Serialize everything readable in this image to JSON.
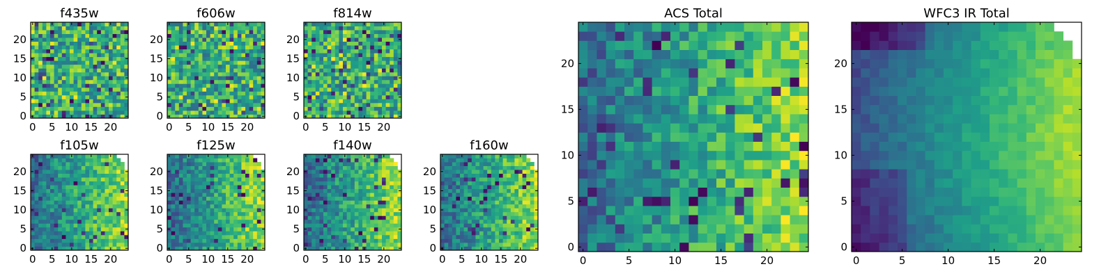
{
  "chart_data": [
    {
      "type": "heatmap",
      "title": "f435w",
      "colormap": "viridis",
      "grid_size": 25,
      "x_ticks": [
        "0",
        "5",
        "10",
        "15",
        "20"
      ],
      "y_ticks": [
        "0",
        "5",
        "10",
        "15",
        "20"
      ],
      "character": "noise",
      "masked_corner": false,
      "xlabel": "",
      "ylabel": ""
    },
    {
      "type": "heatmap",
      "title": "f606w",
      "colormap": "viridis",
      "grid_size": 25,
      "x_ticks": [
        "0",
        "5",
        "10",
        "15",
        "20"
      ],
      "y_ticks": [
        "0",
        "5",
        "10",
        "15",
        "20"
      ],
      "character": "noise",
      "masked_corner": false,
      "xlabel": "",
      "ylabel": ""
    },
    {
      "type": "heatmap",
      "title": "f814w",
      "colormap": "viridis",
      "grid_size": 25,
      "x_ticks": [
        "0",
        "5",
        "10",
        "15",
        "20"
      ],
      "y_ticks": [
        "0",
        "5",
        "10",
        "15",
        "20"
      ],
      "character": "noise",
      "masked_corner": false,
      "xlabel": "",
      "ylabel": ""
    },
    {
      "type": "heatmap",
      "title": "f105w",
      "colormap": "viridis",
      "grid_size": 25,
      "x_ticks": [
        "0",
        "5",
        "10",
        "15",
        "20"
      ],
      "y_ticks": [
        "0",
        "5",
        "10",
        "15",
        "20"
      ],
      "character": "gradient-noisy",
      "masked_corner": true,
      "xlabel": "",
      "ylabel": ""
    },
    {
      "type": "heatmap",
      "title": "f125w",
      "colormap": "viridis",
      "grid_size": 25,
      "x_ticks": [
        "0",
        "5",
        "10",
        "15",
        "20"
      ],
      "y_ticks": [
        "0",
        "5",
        "10",
        "15",
        "20"
      ],
      "character": "gradient-noisy",
      "masked_corner": true,
      "xlabel": "",
      "ylabel": ""
    },
    {
      "type": "heatmap",
      "title": "f140w",
      "colormap": "viridis",
      "grid_size": 25,
      "x_ticks": [
        "0",
        "5",
        "10",
        "15",
        "20"
      ],
      "y_ticks": [
        "0",
        "5",
        "10",
        "15",
        "20"
      ],
      "character": "gradient-noisy",
      "masked_corner": true,
      "xlabel": "",
      "ylabel": ""
    },
    {
      "type": "heatmap",
      "title": "f160w",
      "colormap": "viridis",
      "grid_size": 25,
      "x_ticks": [
        "0",
        "5",
        "10",
        "15",
        "20"
      ],
      "y_ticks": [
        "0",
        "5",
        "10",
        "15",
        "20"
      ],
      "character": "gradient-noisy",
      "masked_corner": true,
      "xlabel": "",
      "ylabel": ""
    },
    {
      "type": "heatmap",
      "title": "ACS Total",
      "colormap": "viridis",
      "grid_size": 25,
      "x_ticks": [
        "0",
        "5",
        "10",
        "15",
        "20"
      ],
      "y_ticks": [
        "0",
        "5",
        "10",
        "15",
        "20"
      ],
      "character": "gradient-noisy",
      "masked_corner": false,
      "xlabel": "",
      "ylabel": ""
    },
    {
      "type": "heatmap",
      "title": "WFC3 IR Total",
      "colormap": "viridis",
      "grid_size": 25,
      "x_ticks": [
        "0",
        "5",
        "10",
        "15",
        "20"
      ],
      "y_ticks": [
        "0",
        "5",
        "10",
        "15",
        "20"
      ],
      "character": "gradient-smooth",
      "masked_corner": true,
      "xlabel": "",
      "ylabel": ""
    }
  ]
}
